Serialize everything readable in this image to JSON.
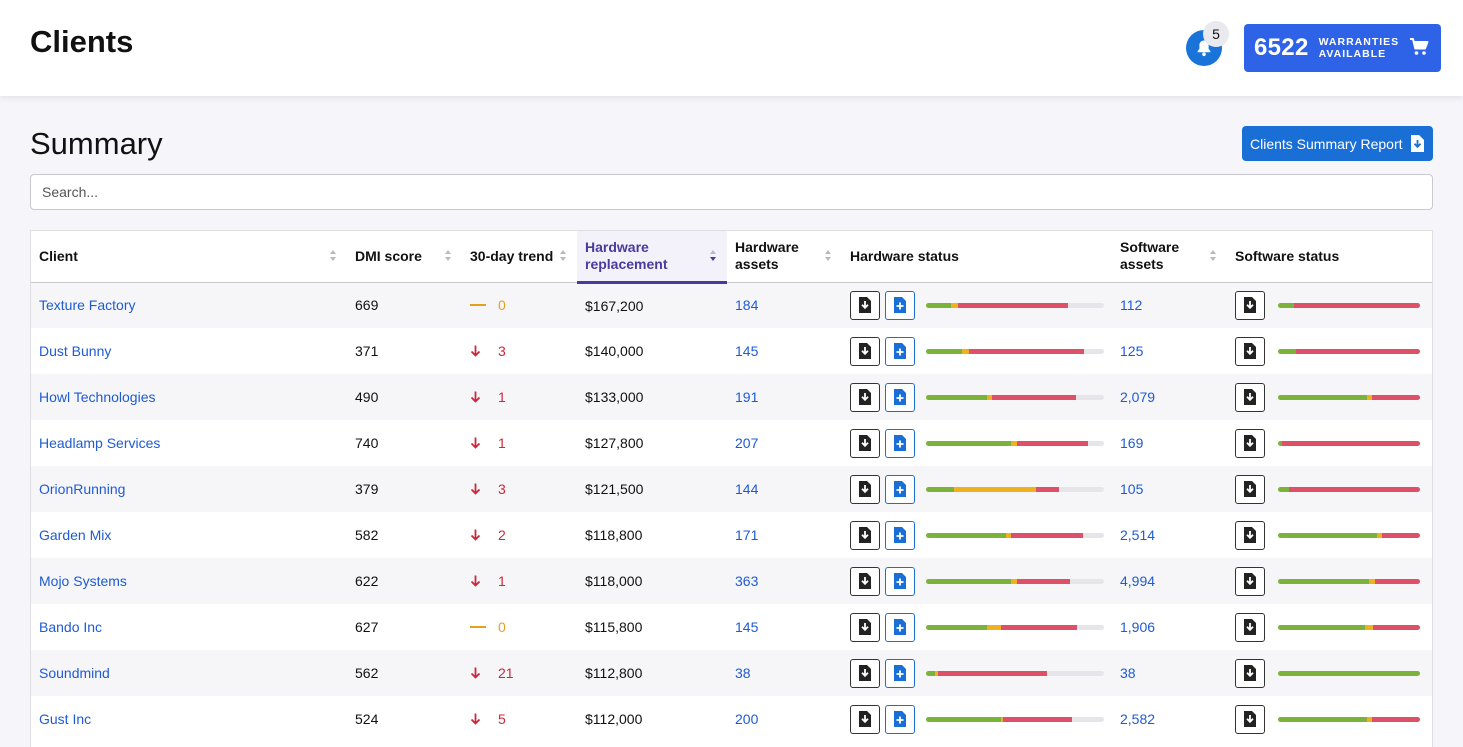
{
  "header": {
    "title": "Clients",
    "notifications": "5",
    "warranty_count": "6522",
    "warranty_label_1": "WARRANTIES",
    "warranty_label_2": "AVAILABLE"
  },
  "summary": {
    "title": "Summary",
    "report_button": "Clients Summary Report"
  },
  "search": {
    "placeholder": "Search..."
  },
  "colors": {
    "green": "#7bb33a",
    "yellow": "#efb21e",
    "red": "#dd5067",
    "track": "#e6e6ea",
    "accent": "#4b3a9e",
    "link": "#1f5bd3"
  },
  "table": {
    "columns": [
      "Client",
      "DMI score",
      "30-day trend",
      "Hardware replacement",
      "Hardware assets",
      "Hardware status",
      "Software assets",
      "Software status"
    ],
    "sorted_column": "Hardware replacement",
    "rows": [
      {
        "client": "Texture Factory",
        "dmi": "669",
        "trend_dir": "flat",
        "trend": "0",
        "replacement": "$167,200",
        "hw_assets": "184",
        "hw_status": [
          0.14,
          0.04,
          0.62
        ],
        "sw_assets": "112",
        "sw_status": [
          0.11,
          0.0,
          0.89
        ]
      },
      {
        "client": "Dust Bunny",
        "dmi": "371",
        "trend_dir": "down",
        "trend": "3",
        "replacement": "$140,000",
        "hw_assets": "145",
        "hw_status": [
          0.2,
          0.04,
          0.65
        ],
        "sw_assets": "125",
        "sw_status": [
          0.13,
          0.0,
          0.87
        ]
      },
      {
        "client": "Howl Technologies",
        "dmi": "490",
        "trend_dir": "down",
        "trend": "1",
        "replacement": "$133,000",
        "hw_assets": "191",
        "hw_status": [
          0.34,
          0.03,
          0.47
        ],
        "sw_assets": "2,079",
        "sw_status": [
          0.63,
          0.03,
          0.34
        ]
      },
      {
        "client": "Headlamp Services",
        "dmi": "740",
        "trend_dir": "down",
        "trend": "1",
        "replacement": "$127,800",
        "hw_assets": "207",
        "hw_status": [
          0.48,
          0.03,
          0.4
        ],
        "sw_assets": "169",
        "sw_status": [
          0.03,
          0.0,
          0.97
        ]
      },
      {
        "client": "OrionRunning",
        "dmi": "379",
        "trend_dir": "down",
        "trend": "3",
        "replacement": "$121,500",
        "hw_assets": "144",
        "hw_status": [
          0.16,
          0.46,
          0.13
        ],
        "sw_assets": "105",
        "sw_status": [
          0.08,
          0.0,
          0.92
        ]
      },
      {
        "client": "Garden Mix",
        "dmi": "582",
        "trend_dir": "down",
        "trend": "2",
        "replacement": "$118,800",
        "hw_assets": "171",
        "hw_status": [
          0.45,
          0.03,
          0.4
        ],
        "sw_assets": "2,514",
        "sw_status": [
          0.7,
          0.03,
          0.27
        ]
      },
      {
        "client": "Mojo Systems",
        "dmi": "622",
        "trend_dir": "down",
        "trend": "1",
        "replacement": "$118,000",
        "hw_assets": "363",
        "hw_status": [
          0.48,
          0.03,
          0.3
        ],
        "sw_assets": "4,994",
        "sw_status": [
          0.64,
          0.04,
          0.32
        ]
      },
      {
        "client": "Bando Inc",
        "dmi": "627",
        "trend_dir": "flat",
        "trend": "0",
        "replacement": "$115,800",
        "hw_assets": "145",
        "hw_status": [
          0.34,
          0.08,
          0.43
        ],
        "sw_assets": "1,906",
        "sw_status": [
          0.61,
          0.06,
          0.33
        ]
      },
      {
        "client": "Soundmind",
        "dmi": "562",
        "trend_dir": "down",
        "trend": "21",
        "replacement": "$112,800",
        "hw_assets": "38",
        "hw_status": [
          0.05,
          0.02,
          0.61
        ],
        "sw_assets": "38",
        "sw_status": [
          1.0,
          0.0,
          0.0
        ]
      },
      {
        "client": "Gust Inc",
        "dmi": "524",
        "trend_dir": "down",
        "trend": "5",
        "replacement": "$112,000",
        "hw_assets": "200",
        "hw_status": [
          0.42,
          0.01,
          0.39
        ],
        "sw_assets": "2,582",
        "sw_status": [
          0.63,
          0.03,
          0.34
        ]
      }
    ]
  }
}
